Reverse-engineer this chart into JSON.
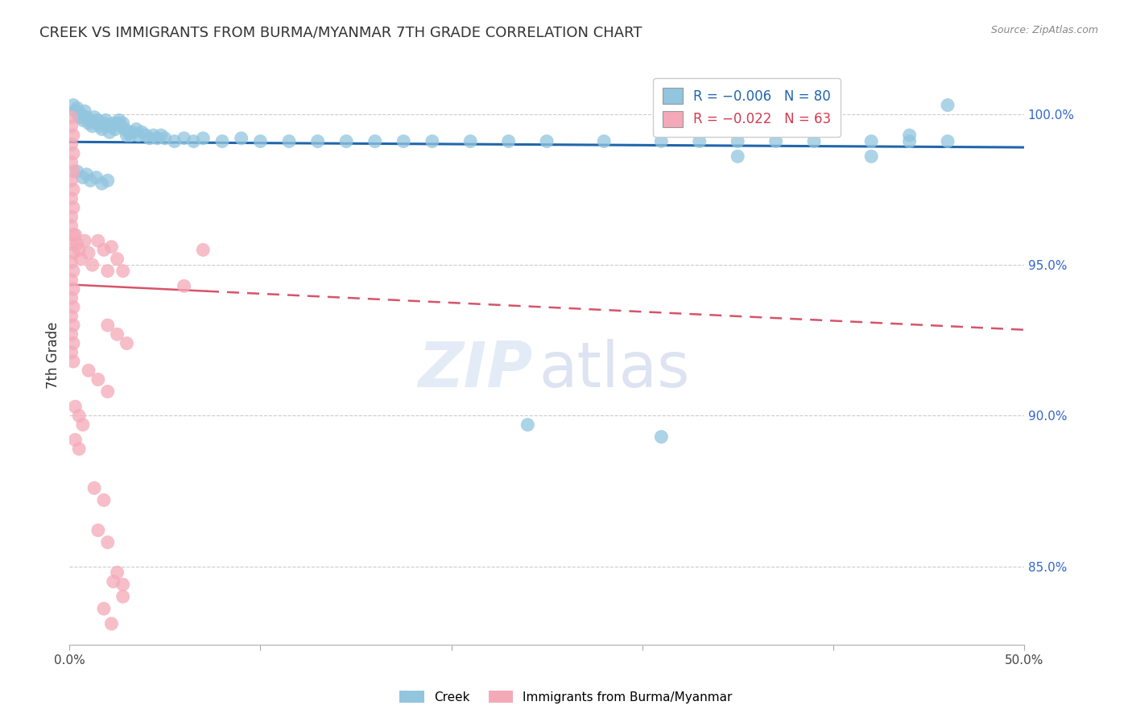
{
  "title": "CREEK VS IMMIGRANTS FROM BURMA/MYANMAR 7TH GRADE CORRELATION CHART",
  "source": "Source: ZipAtlas.com",
  "ylabel": "7th Grade",
  "ylabel_right_ticks": [
    "100.0%",
    "95.0%",
    "90.0%",
    "85.0%"
  ],
  "ylabel_right_values": [
    1.0,
    0.95,
    0.9,
    0.85
  ],
  "xlim": [
    0.0,
    0.5
  ],
  "ylim": [
    0.824,
    1.016
  ],
  "blue_color": "#92c5de",
  "pink_color": "#f4a9b8",
  "blue_line_color": "#2166ac",
  "pink_line_color": "#d6546a",
  "blue_trend": [
    0.0,
    0.5,
    0.9908,
    0.989
  ],
  "pink_trend_solid": [
    0.0,
    0.072,
    0.9435,
    0.9413
  ],
  "pink_trend_dashed": [
    0.072,
    0.5,
    0.9413,
    0.9285
  ],
  "blue_dots": [
    [
      0.002,
      1.003
    ],
    [
      0.003,
      1.001
    ],
    [
      0.004,
      1.002
    ],
    [
      0.005,
      0.999
    ],
    [
      0.006,
      1.0
    ],
    [
      0.007,
      0.998
    ],
    [
      0.008,
      1.001
    ],
    [
      0.009,
      0.999
    ],
    [
      0.01,
      0.997
    ],
    [
      0.011,
      0.998
    ],
    [
      0.012,
      0.996
    ],
    [
      0.013,
      0.999
    ],
    [
      0.014,
      0.997
    ],
    [
      0.015,
      0.998
    ],
    [
      0.016,
      0.996
    ],
    [
      0.017,
      0.995
    ],
    [
      0.018,
      0.997
    ],
    [
      0.019,
      0.998
    ],
    [
      0.02,
      0.996
    ],
    [
      0.021,
      0.994
    ],
    [
      0.022,
      0.996
    ],
    [
      0.023,
      0.997
    ],
    [
      0.024,
      0.995
    ],
    [
      0.025,
      0.997
    ],
    [
      0.026,
      0.998
    ],
    [
      0.027,
      0.996
    ],
    [
      0.028,
      0.997
    ],
    [
      0.029,
      0.995
    ],
    [
      0.03,
      0.993
    ],
    [
      0.031,
      0.994
    ],
    [
      0.032,
      0.993
    ],
    [
      0.033,
      0.994
    ],
    [
      0.035,
      0.995
    ],
    [
      0.036,
      0.993
    ],
    [
      0.038,
      0.994
    ],
    [
      0.04,
      0.993
    ],
    [
      0.042,
      0.992
    ],
    [
      0.044,
      0.993
    ],
    [
      0.046,
      0.992
    ],
    [
      0.048,
      0.993
    ],
    [
      0.05,
      0.992
    ],
    [
      0.055,
      0.991
    ],
    [
      0.06,
      0.992
    ],
    [
      0.065,
      0.991
    ],
    [
      0.07,
      0.992
    ],
    [
      0.08,
      0.991
    ],
    [
      0.09,
      0.992
    ],
    [
      0.1,
      0.991
    ],
    [
      0.004,
      0.981
    ],
    [
      0.007,
      0.979
    ],
    [
      0.009,
      0.98
    ],
    [
      0.011,
      0.978
    ],
    [
      0.014,
      0.979
    ],
    [
      0.017,
      0.977
    ],
    [
      0.02,
      0.978
    ],
    [
      0.115,
      0.991
    ],
    [
      0.13,
      0.991
    ],
    [
      0.145,
      0.991
    ],
    [
      0.16,
      0.991
    ],
    [
      0.175,
      0.991
    ],
    [
      0.19,
      0.991
    ],
    [
      0.21,
      0.991
    ],
    [
      0.23,
      0.991
    ],
    [
      0.25,
      0.991
    ],
    [
      0.28,
      0.991
    ],
    [
      0.31,
      0.991
    ],
    [
      0.33,
      0.991
    ],
    [
      0.35,
      0.991
    ],
    [
      0.39,
      0.991
    ],
    [
      0.42,
      0.991
    ],
    [
      0.24,
      0.897
    ],
    [
      0.31,
      0.893
    ],
    [
      0.44,
      0.991
    ],
    [
      0.46,
      1.003
    ],
    [
      0.37,
      0.991
    ],
    [
      0.35,
      0.986
    ],
    [
      0.42,
      0.986
    ],
    [
      0.44,
      0.993
    ],
    [
      0.46,
      0.991
    ]
  ],
  "pink_dots": [
    [
      0.001,
      0.999
    ],
    [
      0.001,
      0.996
    ],
    [
      0.002,
      0.993
    ],
    [
      0.001,
      0.99
    ],
    [
      0.002,
      0.987
    ],
    [
      0.001,
      0.984
    ],
    [
      0.002,
      0.981
    ],
    [
      0.001,
      0.978
    ],
    [
      0.002,
      0.975
    ],
    [
      0.001,
      0.972
    ],
    [
      0.002,
      0.969
    ],
    [
      0.001,
      0.966
    ],
    [
      0.001,
      0.963
    ],
    [
      0.002,
      0.96
    ],
    [
      0.001,
      0.957
    ],
    [
      0.002,
      0.954
    ],
    [
      0.001,
      0.951
    ],
    [
      0.002,
      0.948
    ],
    [
      0.001,
      0.945
    ],
    [
      0.002,
      0.942
    ],
    [
      0.001,
      0.939
    ],
    [
      0.002,
      0.936
    ],
    [
      0.001,
      0.933
    ],
    [
      0.002,
      0.93
    ],
    [
      0.001,
      0.927
    ],
    [
      0.002,
      0.924
    ],
    [
      0.001,
      0.921
    ],
    [
      0.002,
      0.918
    ],
    [
      0.003,
      0.96
    ],
    [
      0.004,
      0.957
    ],
    [
      0.005,
      0.955
    ],
    [
      0.006,
      0.952
    ],
    [
      0.008,
      0.958
    ],
    [
      0.01,
      0.954
    ],
    [
      0.012,
      0.95
    ],
    [
      0.015,
      0.958
    ],
    [
      0.018,
      0.955
    ],
    [
      0.02,
      0.948
    ],
    [
      0.022,
      0.956
    ],
    [
      0.025,
      0.952
    ],
    [
      0.028,
      0.948
    ],
    [
      0.02,
      0.93
    ],
    [
      0.025,
      0.927
    ],
    [
      0.03,
      0.924
    ],
    [
      0.01,
      0.915
    ],
    [
      0.015,
      0.912
    ],
    [
      0.02,
      0.908
    ],
    [
      0.003,
      0.903
    ],
    [
      0.005,
      0.9
    ],
    [
      0.007,
      0.897
    ],
    [
      0.003,
      0.892
    ],
    [
      0.005,
      0.889
    ],
    [
      0.06,
      0.943
    ],
    [
      0.07,
      0.955
    ],
    [
      0.013,
      0.876
    ],
    [
      0.018,
      0.872
    ],
    [
      0.015,
      0.862
    ],
    [
      0.02,
      0.858
    ],
    [
      0.023,
      0.845
    ],
    [
      0.028,
      0.84
    ],
    [
      0.018,
      0.836
    ],
    [
      0.022,
      0.831
    ],
    [
      0.025,
      0.848
    ],
    [
      0.028,
      0.844
    ]
  ]
}
